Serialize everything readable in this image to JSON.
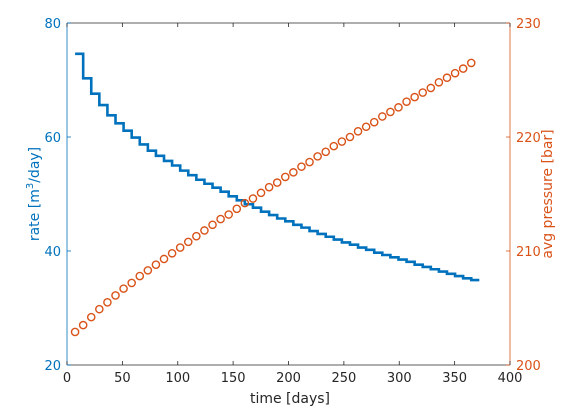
{
  "colors": {
    "rate": "#0072BD",
    "pressure": "#D95319",
    "axis": "#262626"
  },
  "chart_data": {
    "type": "line",
    "xlabel": "time [days]",
    "ylabel_left": "rate [m³/day]",
    "ylabel_right": "avg pressure [bar]",
    "xlim": [
      0,
      400
    ],
    "ylim_left": [
      20,
      80
    ],
    "ylim_right": [
      200,
      230
    ],
    "xticks": [
      0,
      50,
      100,
      150,
      200,
      250,
      300,
      350,
      400
    ],
    "yticks_left": [
      20,
      40,
      60,
      80
    ],
    "yticks_right": [
      200,
      210,
      220,
      230
    ],
    "grid": false,
    "x": [
      7.3,
      14.6,
      21.9,
      29.2,
      36.5,
      43.8,
      51.1,
      58.4,
      65.7,
      73,
      80.3,
      87.6,
      94.9,
      102.2,
      109.5,
      116.8,
      124.1,
      131.4,
      138.7,
      146,
      153.3,
      160.6,
      167.9,
      175.2,
      182.5,
      189.8,
      197.1,
      204.4,
      211.7,
      219,
      226.3,
      233.6,
      240.9,
      248.2,
      255.5,
      262.8,
      270.1,
      277.4,
      284.7,
      292,
      299.3,
      306.6,
      313.9,
      321.2,
      328.5,
      335.8,
      343.1,
      350.4,
      357.7,
      365
    ],
    "series": [
      {
        "name": "rate [m³/day]",
        "axis": "left",
        "style": "stairs",
        "values": [
          74.6,
          70.3,
          67.6,
          65.6,
          63.8,
          62.4,
          61.1,
          59.9,
          58.7,
          57.6,
          56.7,
          55.8,
          55,
          54.1,
          53.3,
          52.5,
          51.8,
          51.1,
          50.4,
          49.6,
          48.9,
          48.2,
          47.6,
          46.9,
          46.3,
          45.7,
          45.2,
          44.6,
          44.1,
          43.5,
          43,
          42.5,
          42,
          41.5,
          41.1,
          40.6,
          40.2,
          39.7,
          39.3,
          38.9,
          38.5,
          38.1,
          37.6,
          37.2,
          36.8,
          36.4,
          36,
          35.6,
          35.2,
          34.9
        ]
      },
      {
        "name": "avg pressure [bar]",
        "axis": "right",
        "style": "markers",
        "marker": "circle",
        "values": [
          202.9,
          203.5,
          204.2,
          204.9,
          205.5,
          206.1,
          206.7,
          207.2,
          207.8,
          208.3,
          208.8,
          209.3,
          209.8,
          210.3,
          210.8,
          211.3,
          211.8,
          212.3,
          212.8,
          213.2,
          213.7,
          214.2,
          214.6,
          215.1,
          215.6,
          216.0,
          216.5,
          216.9,
          217.4,
          217.8,
          218.3,
          218.7,
          219.2,
          219.6,
          220.0,
          220.5,
          220.9,
          221.3,
          221.8,
          222.2,
          222.6,
          223.1,
          223.5,
          223.9,
          224.3,
          224.8,
          225.2,
          225.6,
          226.0,
          226.5
        ]
      }
    ]
  }
}
